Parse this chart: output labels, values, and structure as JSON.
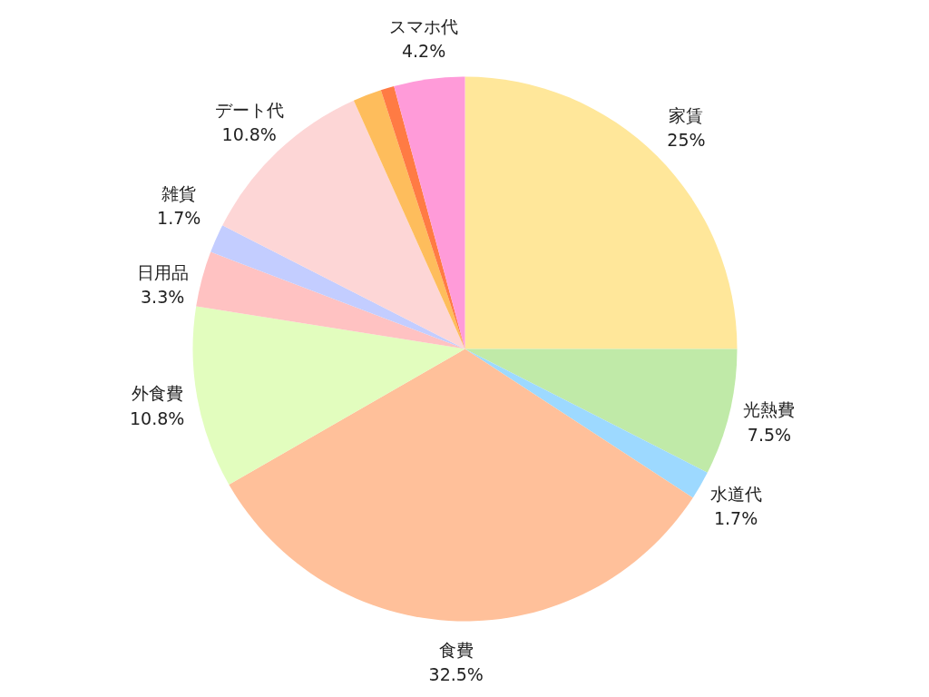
{
  "chart_data": {
    "type": "pie",
    "categories": [
      "家賃",
      "光熱費",
      "水道代",
      "食費",
      "外食費",
      "日用品",
      "雑貨",
      "デート代",
      null,
      null,
      "スマホ代"
    ],
    "values": [
      25,
      7.5,
      1.7,
      32.5,
      10.8,
      3.3,
      1.7,
      10.8,
      1.7,
      0.8,
      4.2
    ],
    "value_labels": [
      "25%",
      "7.5%",
      "1.7%",
      "32.5%",
      "10.8%",
      "3.3%",
      "1.7%",
      "10.8%",
      null,
      null,
      "4.2%"
    ],
    "colors": [
      "#ffe79a",
      "#c0eaa8",
      "#9dd9ff",
      "#ffc09a",
      "#e2fdbe",
      "#ffc2c2",
      "#c3cdff",
      "#fdd6d6",
      "#febd5c",
      "#ff7b44",
      "#ff9bd9"
    ]
  }
}
